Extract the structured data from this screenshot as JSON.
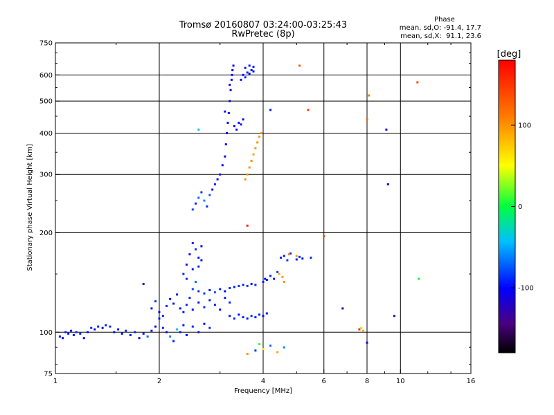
{
  "chart_data": {
    "type": "scatter",
    "title": "Tromsø 20160807 03:24:00-03:25:43",
    "subtitle": "RwPretec (8p)",
    "xlabel": "Frequency [MHz]",
    "ylabel": "Stationary phase Virtual Height [km]",
    "x_scale": "log",
    "y_scale": "log",
    "xlim": [
      1,
      16
    ],
    "ylim": [
      75,
      750
    ],
    "x_ticks": [
      {
        "value": 1,
        "label": "1"
      },
      {
        "value": 2,
        "label": "2"
      },
      {
        "value": 4,
        "label": "4"
      },
      {
        "value": 6,
        "label": "6"
      },
      {
        "value": 8,
        "label": "8"
      },
      {
        "value": 10,
        "label": "10"
      },
      {
        "value": 16,
        "label": "16"
      }
    ],
    "y_ticks": [
      {
        "value": 75,
        "label": "75"
      },
      {
        "value": 100,
        "label": "100"
      },
      {
        "value": 200,
        "label": "200"
      },
      {
        "value": 300,
        "label": "300"
      },
      {
        "value": 400,
        "label": "400"
      },
      {
        "value": 500,
        "label": "500"
      },
      {
        "value": 600,
        "label": "600"
      },
      {
        "value": 750,
        "label": "750"
      }
    ],
    "grid": true,
    "stats": {
      "heading": "Phase",
      "o_line": "mean, sd,O: -91.4, 17.7",
      "x_line": "mean, sd,X:  91.1, 23.6"
    },
    "colorbar": {
      "label": "[deg]",
      "ticks": [
        {
          "value": 100,
          "label": "100"
        },
        {
          "value": 0,
          "label": "0"
        },
        {
          "value": -100,
          "label": "-100"
        }
      ],
      "range": [
        -180,
        180
      ]
    },
    "series": [
      {
        "points": [
          [
            1.03,
            97,
            -95
          ],
          [
            1.05,
            96,
            -100
          ],
          [
            1.07,
            100,
            -90
          ],
          [
            1.09,
            99,
            -95
          ],
          [
            1.11,
            101,
            -100
          ],
          [
            1.13,
            98,
            -95
          ],
          [
            1.15,
            100,
            -88
          ],
          [
            1.18,
            99,
            -92
          ],
          [
            1.21,
            96,
            -100
          ],
          [
            1.24,
            100,
            -95
          ],
          [
            1.27,
            103,
            -90
          ],
          [
            1.3,
            102,
            -98
          ],
          [
            1.33,
            104,
            -92
          ],
          [
            1.37,
            103,
            -100
          ],
          [
            1.4,
            105,
            -95
          ],
          [
            1.44,
            104,
            -90
          ],
          [
            1.48,
            100,
            -98
          ],
          [
            1.52,
            102,
            -95
          ],
          [
            1.56,
            99,
            -100
          ],
          [
            1.6,
            101,
            -92
          ],
          [
            1.65,
            98,
            -95
          ],
          [
            1.7,
            100,
            -90
          ],
          [
            1.75,
            96,
            -100
          ],
          [
            1.8,
            99,
            -95
          ],
          [
            1.85,
            97,
            -70
          ],
          [
            1.9,
            101,
            -95
          ],
          [
            1.95,
            104,
            -100
          ],
          [
            2.0,
            110,
            -95
          ],
          [
            2.05,
            103,
            -90
          ],
          [
            2.1,
            100,
            -98
          ],
          [
            2.15,
            97,
            -60
          ],
          [
            2.2,
            94,
            -95
          ],
          [
            2.25,
            102,
            -40
          ],
          [
            2.3,
            100,
            -92
          ],
          [
            2.35,
            105,
            -95
          ],
          [
            2.4,
            98,
            -100
          ],
          [
            2.5,
            104,
            -90
          ],
          [
            2.6,
            100,
            -95
          ],
          [
            2.7,
            106,
            -98
          ],
          [
            2.8,
            103,
            -90
          ]
        ]
      },
      {
        "points": [
          [
            1.9,
            118,
            -95
          ],
          [
            1.95,
            124,
            -85
          ],
          [
            2.0,
            115,
            -100
          ],
          [
            2.05,
            112,
            -92
          ],
          [
            2.1,
            120,
            -90
          ],
          [
            2.15,
            126,
            -98
          ],
          [
            2.2,
            122,
            -95
          ],
          [
            2.25,
            130,
            -90
          ],
          [
            2.3,
            118,
            -100
          ],
          [
            2.35,
            115,
            -95
          ],
          [
            2.4,
            121,
            -90
          ],
          [
            2.45,
            127,
            -92
          ],
          [
            2.5,
            117,
            -100
          ],
          [
            2.6,
            123,
            -95
          ],
          [
            2.7,
            119,
            -90
          ],
          [
            2.8,
            125,
            -95
          ],
          [
            2.9,
            121,
            -92
          ],
          [
            3.0,
            117,
            -100
          ],
          [
            3.1,
            127,
            -95
          ],
          [
            3.2,
            123,
            -90
          ]
        ]
      },
      {
        "points": [
          [
            2.35,
            150,
            -90
          ],
          [
            2.4,
            160,
            -95
          ],
          [
            2.45,
            172,
            -100
          ],
          [
            2.5,
            186,
            -92
          ],
          [
            2.55,
            178,
            -85
          ],
          [
            2.6,
            168,
            -95
          ],
          [
            2.65,
            182,
            -100
          ],
          [
            2.4,
            145,
            -88
          ],
          [
            2.5,
            155,
            -95
          ],
          [
            2.55,
            142,
            -70
          ],
          [
            2.6,
            158,
            -90
          ],
          [
            2.65,
            165,
            -95
          ]
        ]
      },
      {
        "points": [
          [
            2.5,
            135,
            -80
          ],
          [
            2.6,
            133,
            -90
          ],
          [
            2.7,
            131,
            -85
          ],
          [
            2.8,
            134,
            -95
          ],
          [
            2.9,
            132,
            -75
          ],
          [
            3.0,
            135,
            -90
          ],
          [
            3.1,
            133,
            -100
          ],
          [
            3.2,
            136,
            -90
          ],
          [
            3.3,
            137,
            -95
          ],
          [
            3.4,
            138,
            -88
          ],
          [
            3.5,
            139,
            -92
          ],
          [
            3.6,
            138,
            -85
          ],
          [
            3.7,
            140,
            -95
          ],
          [
            3.8,
            139,
            -90
          ],
          [
            4.0,
            142,
            -92
          ],
          [
            4.05,
            145,
            -95
          ],
          [
            4.1,
            144,
            -100
          ],
          [
            4.2,
            148,
            -90
          ],
          [
            4.3,
            145,
            -95
          ],
          [
            4.4,
            152,
            -85
          ]
        ]
      },
      {
        "points": [
          [
            3.2,
            112,
            -95
          ],
          [
            3.3,
            110,
            -90
          ],
          [
            3.4,
            113,
            -100
          ],
          [
            3.5,
            111,
            -92
          ],
          [
            3.6,
            110,
            -95
          ],
          [
            3.7,
            112,
            -88
          ],
          [
            3.8,
            111,
            -95
          ],
          [
            3.9,
            113,
            -92
          ],
          [
            4.0,
            112,
            -100
          ],
          [
            4.1,
            114,
            -95
          ]
        ]
      },
      {
        "points": [
          [
            4.5,
            168,
            -90
          ],
          [
            4.6,
            170,
            -95
          ],
          [
            4.7,
            165,
            -85
          ],
          [
            4.8,
            173,
            -92
          ],
          [
            5.0,
            166,
            -95
          ],
          [
            5.1,
            169,
            -88
          ],
          [
            5.2,
            167,
            -95
          ],
          [
            5.5,
            168,
            -90
          ]
        ]
      },
      {
        "points": [
          [
            4.45,
            150,
            90
          ],
          [
            4.55,
            147,
            95
          ],
          [
            4.6,
            142,
            100
          ],
          [
            4.75,
            172,
            105
          ],
          [
            5.0,
            170,
            95
          ]
        ]
      },
      {
        "points": [
          [
            2.5,
            235,
            -80
          ],
          [
            2.55,
            245,
            -90
          ],
          [
            2.6,
            255,
            -70
          ],
          [
            2.65,
            265,
            -85
          ],
          [
            2.7,
            250,
            -60
          ],
          [
            2.75,
            240,
            -90
          ],
          [
            2.8,
            260,
            -75
          ],
          [
            2.85,
            270,
            -95
          ],
          [
            2.9,
            280,
            -90
          ],
          [
            2.95,
            290,
            -100
          ],
          [
            3.0,
            300,
            -95
          ],
          [
            3.05,
            320,
            -100
          ],
          [
            3.1,
            340,
            -105
          ],
          [
            3.12,
            370,
            -100
          ],
          [
            3.14,
            400,
            -105
          ],
          [
            3.16,
            430,
            -100
          ],
          [
            3.18,
            460,
            -105
          ],
          [
            3.2,
            500,
            -110
          ],
          [
            3.22,
            540,
            -105
          ],
          [
            3.24,
            580,
            -100
          ],
          [
            3.26,
            620,
            -105
          ],
          [
            3.28,
            640,
            -100
          ],
          [
            3.2,
            560,
            -110
          ],
          [
            3.25,
            600,
            -105
          ]
        ]
      },
      {
        "points": [
          [
            3.45,
            580,
            -95
          ],
          [
            3.5,
            600,
            -100
          ],
          [
            3.55,
            630,
            -95
          ],
          [
            3.6,
            610,
            -90
          ],
          [
            3.65,
            640,
            -95
          ],
          [
            3.7,
            620,
            -100
          ],
          [
            3.75,
            635,
            -95
          ],
          [
            3.55,
            590,
            -90
          ],
          [
            3.65,
            605,
            -100
          ],
          [
            3.75,
            615,
            -95
          ]
        ]
      },
      {
        "points": [
          [
            3.3,
            420,
            -100
          ],
          [
            3.35,
            410,
            -95
          ],
          [
            3.4,
            430,
            -100
          ],
          [
            3.45,
            425,
            -95
          ],
          [
            3.5,
            440,
            -100
          ]
        ]
      },
      {
        "points": [
          [
            3.55,
            290,
            100
          ],
          [
            3.6,
            300,
            95
          ],
          [
            3.65,
            315,
            100
          ],
          [
            3.7,
            330,
            105
          ],
          [
            3.75,
            345,
            95
          ],
          [
            3.8,
            360,
            100
          ],
          [
            3.85,
            375,
            105
          ],
          [
            3.9,
            390,
            100
          ],
          [
            3.95,
            400,
            95
          ]
        ]
      },
      {
        "points": [
          [
            3.8,
            88,
            -85
          ],
          [
            3.9,
            92,
            10
          ],
          [
            4.0,
            89,
            60
          ],
          [
            4.2,
            91,
            -70
          ],
          [
            4.4,
            87,
            90
          ],
          [
            4.6,
            90,
            -60
          ],
          [
            3.6,
            86,
            100
          ]
        ]
      },
      {
        "points": [
          [
            6.8,
            118,
            -120
          ],
          [
            7.6,
            102,
            160
          ],
          [
            7.8,
            101,
            90
          ],
          [
            7.7,
            103,
            30
          ],
          [
            8.0,
            93,
            -100
          ],
          [
            9.1,
            410,
            -100
          ],
          [
            9.2,
            280,
            -100
          ],
          [
            9.6,
            112,
            -120
          ],
          [
            11.3,
            145,
            0
          ],
          [
            11.2,
            570,
            140
          ],
          [
            8.0,
            440,
            120
          ],
          [
            8.1,
            520,
            110
          ],
          [
            5.1,
            640,
            130
          ],
          [
            5.4,
            470,
            150
          ],
          [
            6.0,
            195,
            140
          ],
          [
            1.8,
            140,
            -130
          ],
          [
            3.6,
            210,
            160
          ],
          [
            2.6,
            410,
            -40
          ],
          [
            3.1,
            465,
            -95
          ],
          [
            4.2,
            470,
            -95
          ]
        ]
      }
    ]
  }
}
